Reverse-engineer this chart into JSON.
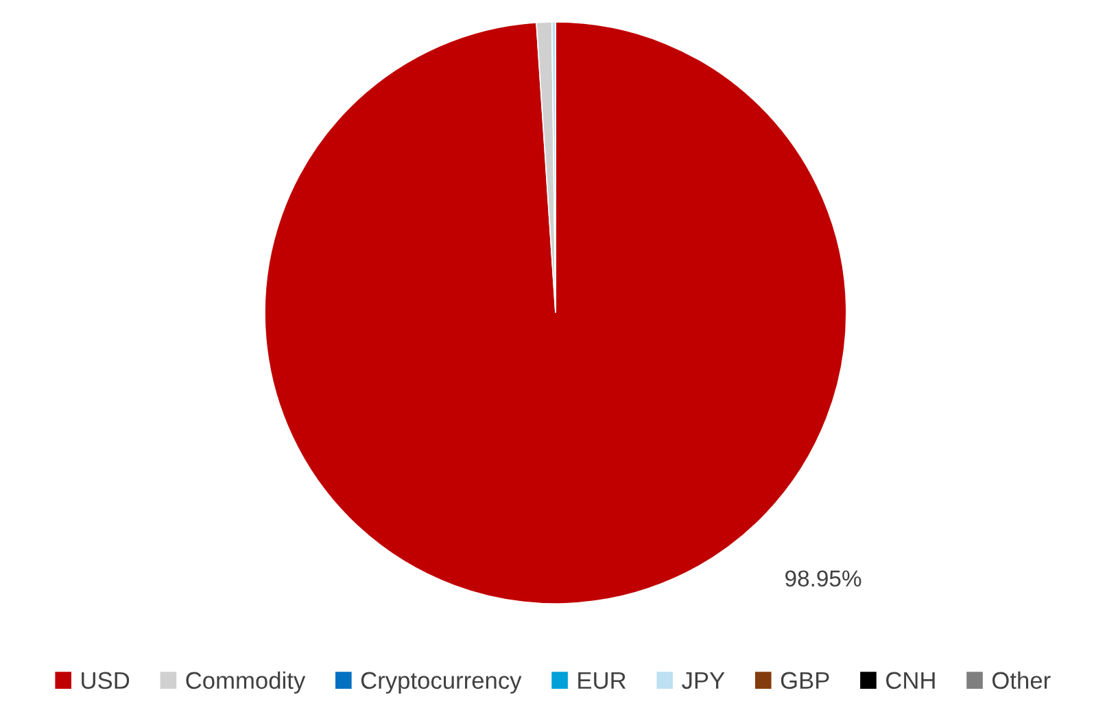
{
  "chart_data": {
    "type": "pie",
    "categories": [
      "USD",
      "Commodity",
      "Cryptocurrency",
      "EUR",
      "JPY",
      "GBP",
      "CNH",
      "Other"
    ],
    "values": [
      98.95,
      0.85,
      0,
      0,
      0.2,
      0,
      0,
      0
    ],
    "colors": [
      "#c00000",
      "#d0d0d0",
      "#0070c0",
      "#00a0d8",
      "#bde0f2",
      "#843c0c",
      "#000000",
      "#7f7f7f"
    ],
    "value_labels": [
      "98.95%",
      null,
      null,
      null,
      null,
      null,
      null,
      null
    ],
    "legend": "bottom"
  }
}
